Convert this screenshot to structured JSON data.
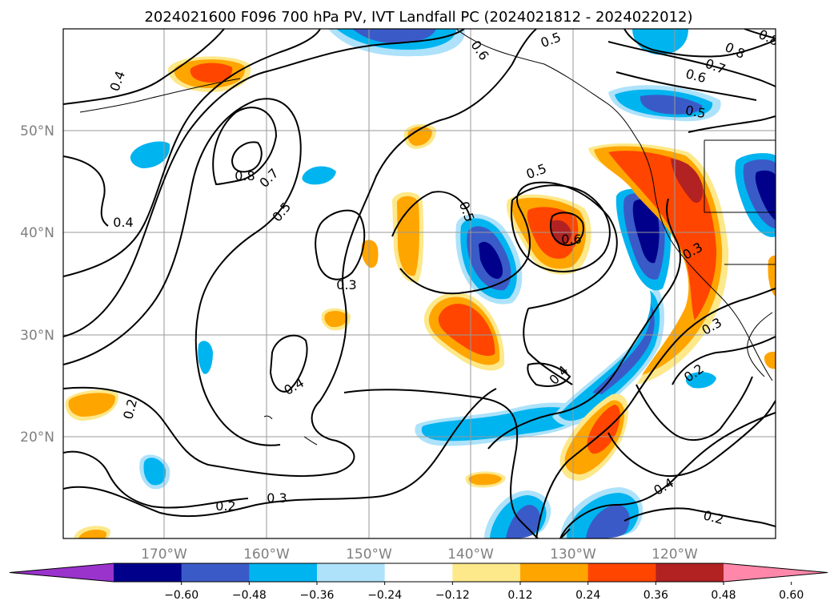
{
  "title": "2024021600 F096 700 hPa PV, IVT Landfall PC (2024021812 - 2024022012)",
  "map": {
    "lat_labels": [
      "50°N",
      "40°N",
      "30°N",
      "20°N"
    ],
    "lon_labels": [
      "170°W",
      "160°W",
      "150°W",
      "140°W",
      "130°W",
      "120°W"
    ],
    "lat_range": [
      10,
      60
    ],
    "lon_range": [
      -180,
      -110
    ]
  },
  "contour_labels": [
    "0.4",
    "0.4",
    "0.8",
    "0.7",
    "0.5",
    "0.3",
    "0.4",
    "0.2",
    "0.2",
    "0.3",
    "0.5",
    "0.5",
    "0.6",
    "0.3",
    "0.3",
    "0.2",
    "0.4",
    "0.4",
    "0.2",
    "0.6",
    "0.5",
    "0.7",
    "0.6",
    "0.8",
    "0.8",
    "0.5"
  ],
  "colorbar": {
    "ticks": [
      "−0.60",
      "−0.48",
      "−0.36",
      "−0.24",
      "−0.12",
      "0.12",
      "0.24",
      "0.36",
      "0.48",
      "0.60"
    ],
    "colors": [
      "#9933cc",
      "#00008b",
      "#3a5bc7",
      "#00b4f0",
      "#ade2fa",
      "#ffffff",
      "#fde88a",
      "#ffa500",
      "#ff4500",
      "#b22222",
      "#ff88aa"
    ]
  }
}
